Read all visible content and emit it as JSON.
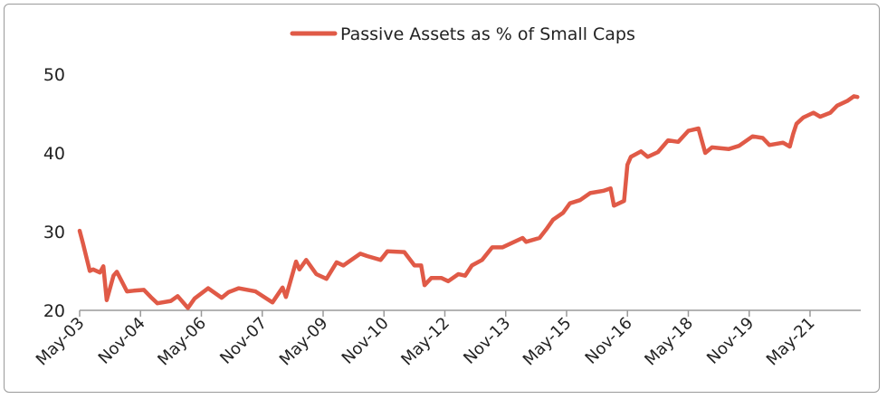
{
  "chart_data": {
    "type": "line",
    "title": "",
    "xlabel": "",
    "ylabel": "",
    "ylim": [
      20,
      50
    ],
    "yticks": [
      20,
      30,
      40,
      50
    ],
    "xlim": [
      "2003-05",
      "2022-08"
    ],
    "xtick_labels": [
      "May-03",
      "Nov-04",
      "May-06",
      "Nov-07",
      "May-09",
      "Nov-10",
      "May-12",
      "Nov-13",
      "May-15",
      "Nov-16",
      "May-18",
      "Nov-19",
      "May-21"
    ],
    "xtick_dates": [
      "2003-05",
      "2004-11",
      "2006-05",
      "2007-11",
      "2009-05",
      "2010-11",
      "2012-05",
      "2013-11",
      "2015-05",
      "2016-11",
      "2018-05",
      "2019-11",
      "2021-05"
    ],
    "grid": false,
    "legend_position": "top-center",
    "series": [
      {
        "name": "Passive Assets as % of Small Caps",
        "color": "#e05a47",
        "x": [
          "2003-05",
          "2003-06",
          "2003-08",
          "2003-09",
          "2003-11",
          "2003-12",
          "2004-01",
          "2004-03",
          "2004-04",
          "2004-07",
          "2004-09",
          "2004-12",
          "2005-02",
          "2005-04",
          "2005-08",
          "2005-10",
          "2006-01",
          "2006-03",
          "2006-07",
          "2006-11",
          "2007-01",
          "2007-04",
          "2007-09",
          "2008-02",
          "2008-05",
          "2008-06",
          "2008-09",
          "2008-10",
          "2008-12",
          "2009-03",
          "2009-06",
          "2009-09",
          "2009-11",
          "2010-04",
          "2010-06",
          "2010-10",
          "2010-12",
          "2011-05",
          "2011-08",
          "2011-10",
          "2011-11",
          "2012-01",
          "2012-04",
          "2012-06",
          "2012-09",
          "2012-11",
          "2013-01",
          "2013-04",
          "2013-07",
          "2013-10",
          "2014-04",
          "2014-05",
          "2014-09",
          "2014-11",
          "2015-01",
          "2015-04",
          "2015-06",
          "2015-09",
          "2015-12",
          "2016-04",
          "2016-06",
          "2016-07",
          "2016-10",
          "2016-11",
          "2016-12",
          "2017-03",
          "2017-05",
          "2017-08",
          "2017-11",
          "2018-02",
          "2018-05",
          "2018-08",
          "2018-10",
          "2018-12",
          "2019-05",
          "2019-08",
          "2019-12",
          "2020-03",
          "2020-05",
          "2020-09",
          "2020-11",
          "2020-12",
          "2021-01",
          "2021-03",
          "2021-06",
          "2021-08",
          "2021-11",
          "2022-01",
          "2022-04",
          "2022-06",
          "2022-07"
        ],
        "values": [
          30.1,
          28.5,
          25.0,
          25.2,
          24.8,
          25.6,
          21.3,
          24.4,
          24.9,
          22.4,
          22.5,
          22.6,
          21.7,
          20.9,
          21.2,
          21.8,
          20.3,
          21.5,
          22.8,
          21.6,
          22.3,
          22.8,
          22.4,
          21.0,
          22.9,
          21.7,
          26.2,
          25.2,
          26.4,
          24.6,
          24.0,
          26.1,
          25.7,
          27.2,
          26.9,
          26.4,
          27.5,
          27.4,
          25.7,
          25.7,
          23.2,
          24.1,
          24.1,
          23.7,
          24.6,
          24.4,
          25.7,
          26.4,
          28.0,
          28.0,
          29.2,
          28.7,
          29.2,
          30.3,
          31.5,
          32.4,
          33.6,
          34.0,
          34.9,
          35.2,
          35.5,
          33.3,
          33.9,
          38.5,
          39.5,
          40.2,
          39.5,
          40.1,
          41.6,
          41.4,
          42.8,
          43.1,
          40.0,
          40.7,
          40.5,
          40.9,
          42.1,
          41.9,
          41.0,
          41.3,
          40.8,
          42.4,
          43.7,
          44.5,
          45.1,
          44.6,
          45.1,
          46.0,
          46.6,
          47.2,
          47.1
        ]
      }
    ]
  }
}
